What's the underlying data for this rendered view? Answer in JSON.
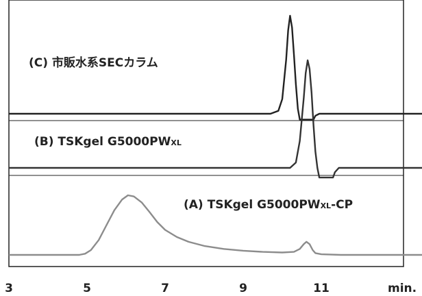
{
  "chart_data": {
    "type": "line",
    "xlabel": "min.",
    "xlim": [
      3,
      13.6
    ],
    "x_ticks": [
      "3",
      "5",
      "7",
      "9",
      "11"
    ],
    "grid": false,
    "legend": "none",
    "series": [
      {
        "name": "(C) 市販水系SECカラム",
        "color": "#222222",
        "x": [
          3,
          9.7,
          9.9,
          10.0,
          10.1,
          10.15,
          10.2,
          10.25,
          10.3,
          10.35,
          10.4,
          10.45,
          10.5,
          10.8,
          10.85,
          10.95,
          13.6
        ],
        "y": [
          0,
          0,
          0.03,
          0.15,
          0.55,
          0.85,
          1.0,
          0.88,
          0.6,
          0.3,
          0.05,
          -0.06,
          -0.06,
          -0.06,
          -0.02,
          0,
          0
        ]
      },
      {
        "name": "(B) TSKgel G5000PWXL",
        "color": "#333333",
        "x": [
          3,
          10.2,
          10.35,
          10.45,
          10.55,
          10.6,
          10.65,
          10.7,
          10.75,
          10.8,
          10.85,
          10.9,
          10.95,
          11.0,
          11.3,
          11.35,
          11.45,
          13.6
        ],
        "y": [
          0,
          0,
          0.05,
          0.25,
          0.65,
          0.88,
          1.0,
          0.92,
          0.7,
          0.4,
          0.15,
          0.0,
          -0.09,
          -0.09,
          -0.09,
          -0.04,
          0,
          0
        ]
      },
      {
        "name": "(A) TSKgel G5000PWXL-CP",
        "color": "#8c8c8c",
        "x": [
          3,
          4.8,
          4.95,
          5.1,
          5.3,
          5.5,
          5.7,
          5.9,
          6.05,
          6.2,
          6.4,
          6.6,
          6.8,
          7.0,
          7.3,
          7.6,
          8.0,
          8.5,
          9.0,
          9.5,
          10.0,
          10.3,
          10.45,
          10.55,
          10.62,
          10.7,
          10.78,
          10.85,
          11.0,
          11.5,
          12.0,
          12.5,
          13.0,
          13.6
        ],
        "y": [
          0,
          0,
          0.02,
          0.08,
          0.25,
          0.5,
          0.75,
          0.93,
          1.0,
          0.98,
          0.88,
          0.72,
          0.55,
          0.42,
          0.3,
          0.22,
          0.15,
          0.1,
          0.07,
          0.05,
          0.04,
          0.05,
          0.1,
          0.18,
          0.22,
          0.18,
          0.08,
          0.03,
          0.01,
          0,
          0,
          0,
          0,
          0
        ]
      }
    ],
    "annotations": [
      {
        "id": "c",
        "text": "(C) 市販水系SECカラム"
      },
      {
        "id": "b",
        "main": "(B) TSKgel G5000PW",
        "sub": "XL"
      },
      {
        "id": "a",
        "main": "(A) TSKgel G5000PW",
        "sub": "XL",
        "suffix": "-CP"
      }
    ]
  }
}
